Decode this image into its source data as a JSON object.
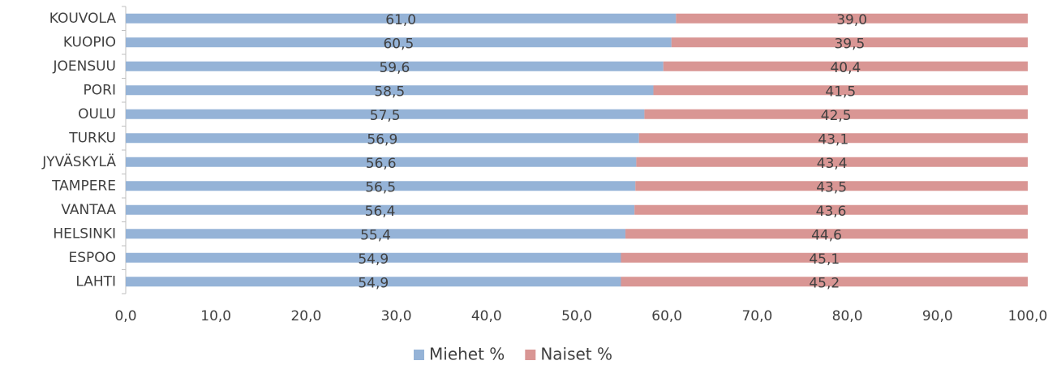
{
  "chart_data": {
    "type": "bar",
    "orientation": "horizontal",
    "stacked": true,
    "categories": [
      "KOUVOLA",
      "KUOPIO",
      "JOENSUU",
      "PORI",
      "OULU",
      "TURKU",
      "JYVÄSKYLÄ",
      "TAMPERE",
      "VANTAA",
      "HELSINKI",
      "ESPOO",
      "LAHTI"
    ],
    "series": [
      {
        "name": "Miehet %",
        "color": "#95b3d7",
        "values": [
          61.0,
          60.5,
          59.6,
          58.5,
          57.5,
          56.9,
          56.6,
          56.5,
          56.4,
          55.4,
          54.9,
          54.9
        ],
        "value_labels": [
          "61,0",
          "60,5",
          "59,6",
          "58,5",
          "57,5",
          "56,9",
          "56,6",
          "56,5",
          "56,4",
          "55,4",
          "54,9",
          "54,9"
        ]
      },
      {
        "name": "Naiset %",
        "color": "#d99694",
        "values": [
          39.0,
          39.5,
          40.4,
          41.5,
          42.5,
          43.1,
          43.4,
          43.5,
          43.6,
          44.6,
          45.1,
          45.2
        ],
        "value_labels": [
          "39,0",
          "39,5",
          "40,4",
          "41,5",
          "42,5",
          "43,1",
          "43,4",
          "43,5",
          "43,6",
          "44,6",
          "45,1",
          "45,2"
        ]
      }
    ],
    "xlim": [
      0,
      100
    ],
    "xticks": [
      {
        "value": 0,
        "label": "0,0"
      },
      {
        "value": 10,
        "label": "10,0"
      },
      {
        "value": 20,
        "label": "20,0"
      },
      {
        "value": 30,
        "label": "30,0"
      },
      {
        "value": 40,
        "label": "40,0"
      },
      {
        "value": 50,
        "label": "50,0"
      },
      {
        "value": 60,
        "label": "60,0"
      },
      {
        "value": 70,
        "label": "70,0"
      },
      {
        "value": 80,
        "label": "80,0"
      },
      {
        "value": 90,
        "label": "90,0"
      },
      {
        "value": 100,
        "label": "100,0"
      }
    ],
    "legend": "bottom",
    "grid": false
  }
}
